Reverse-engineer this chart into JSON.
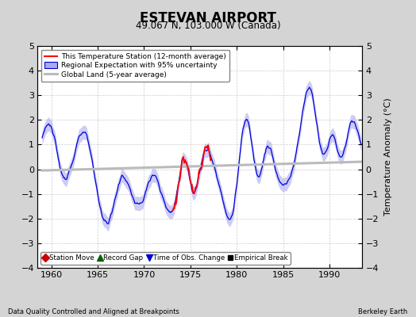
{
  "title": "ESTEVAN AIRPORT",
  "subtitle": "49.067 N, 103.000 W (Canada)",
  "ylabel": "Temperature Anomaly (°C)",
  "footer_left": "Data Quality Controlled and Aligned at Breakpoints",
  "footer_right": "Berkeley Earth",
  "xlim": [
    1958.5,
    1993.5
  ],
  "ylim": [
    -4,
    5
  ],
  "yticks": [
    -4,
    -3,
    -2,
    -1,
    0,
    1,
    2,
    3,
    4,
    5
  ],
  "xticks": [
    1960,
    1965,
    1970,
    1975,
    1980,
    1985,
    1990
  ],
  "bg_color": "#d4d4d4",
  "plot_bg": "#ffffff",
  "blue_line": "#0000dd",
  "blue_fill": "#aaaaee",
  "red_line": "#ff0000",
  "gray_line": "#bbbbbb",
  "legend_main": [
    "This Temperature Station (12-month average)",
    "Regional Expectation with 95% uncertainty",
    "Global Land (5-year average)"
  ],
  "legend_bottom": [
    {
      "marker": "D",
      "color": "#cc0000",
      "label": "Station Move"
    },
    {
      "marker": "^",
      "color": "#006600",
      "label": "Record Gap"
    },
    {
      "marker": "v",
      "color": "#0000cc",
      "label": "Time of Obs. Change"
    },
    {
      "marker": "s",
      "color": "#000000",
      "label": "Empirical Break"
    }
  ]
}
